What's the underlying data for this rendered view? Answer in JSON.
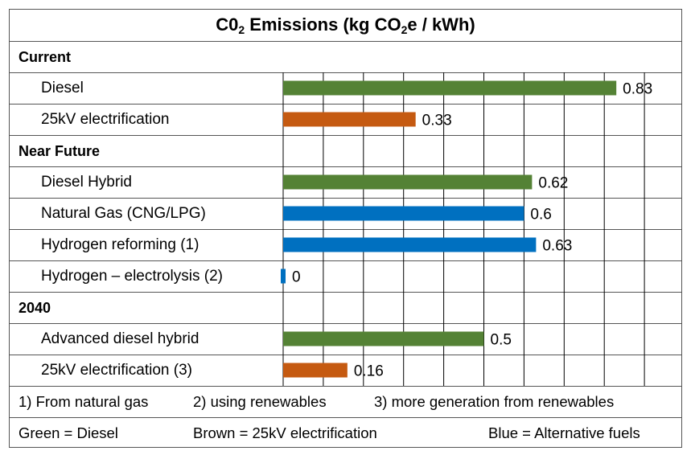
{
  "chart_data": {
    "type": "bar",
    "orientation": "horizontal",
    "title_parts": [
      "C0",
      "2",
      " Emissions (kg CO",
      "2",
      "e / kWh)"
    ],
    "xlim": [
      0,
      1
    ],
    "grid": true,
    "sections": [
      {
        "name": "Current",
        "items": [
          {
            "label": "Diesel",
            "value": 0.83,
            "value_label": "0.83",
            "category": "diesel"
          },
          {
            "label": "25kV electrification",
            "value": 0.33,
            "value_label": "0.33",
            "category": "electric"
          }
        ]
      },
      {
        "name": "Near Future",
        "items": [
          {
            "label": "Diesel Hybrid",
            "value": 0.62,
            "value_label": "0.62",
            "category": "diesel"
          },
          {
            "label": "Natural Gas (CNG/LPG)",
            "value": 0.6,
            "value_label": "0.6",
            "category": "alt"
          },
          {
            "label": "Hydrogen reforming (1)",
            "value": 0.63,
            "value_label": "0.63",
            "category": "alt"
          },
          {
            "label": "Hydrogen – electrolysis (2)",
            "value": 0,
            "value_label": "0",
            "category": "alt"
          }
        ]
      },
      {
        "name": "2040",
        "items": [
          {
            "label": "Advanced diesel hybrid",
            "value": 0.5,
            "value_label": "0.5",
            "category": "diesel"
          },
          {
            "label": "25kV electrification (3)",
            "value": 0.16,
            "value_label": "0.16",
            "category": "electric"
          }
        ]
      }
    ],
    "colors": {
      "diesel": "#548235",
      "electric": "#C55A11",
      "alt": "#0070C0",
      "grid": "#000000"
    },
    "notes": [
      "1) From natural gas",
      "2) using renewables",
      "3) more generation from renewables"
    ],
    "legend": [
      "Green = Diesel",
      "Brown = 25kV electrification",
      "Blue = Alternative fuels"
    ]
  }
}
